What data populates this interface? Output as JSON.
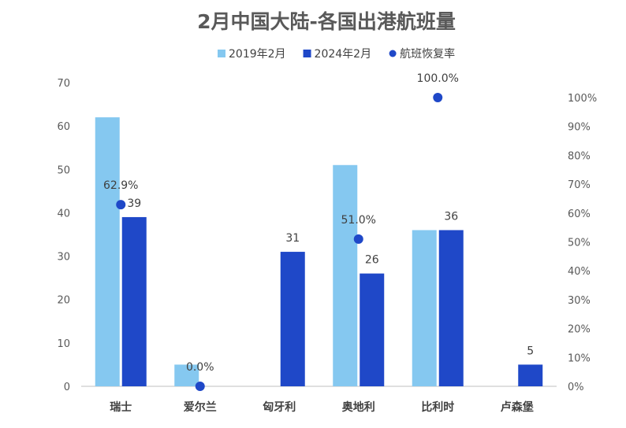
{
  "chart_data": {
    "type": "bar",
    "title": "2月中国大陆-各国出港航班量",
    "categories": [
      "瑞士",
      "爱尔兰",
      "匈牙利",
      "奥地利",
      "比利时",
      "卢森堡"
    ],
    "series": [
      {
        "name": "2019年2月",
        "kind": "bar",
        "axis": "left",
        "color": "#85C8F0",
        "values": [
          62,
          5,
          0,
          51,
          36,
          0
        ],
        "show_labels": false
      },
      {
        "name": "2024年2月",
        "kind": "bar",
        "axis": "left",
        "color": "#1F48C8",
        "values": [
          39,
          0,
          31,
          26,
          36,
          5
        ],
        "labels": [
          "39",
          "",
          "31",
          "26",
          "36",
          "5"
        ]
      },
      {
        "name": "航班恢复率",
        "kind": "scatter",
        "axis": "right",
        "color": "#1F48C8",
        "values": [
          62.9,
          0.0,
          null,
          51.0,
          100.0,
          null
        ],
        "labels": [
          "62.9%",
          "0.0%",
          "",
          "51.0%",
          "100.0%",
          ""
        ]
      }
    ],
    "y_left": {
      "min": 0,
      "max": 70,
      "step": 10,
      "ticks": [
        "0",
        "10",
        "20",
        "30",
        "40",
        "50",
        "60",
        "70"
      ]
    },
    "y_right": {
      "min": 0,
      "max": 100,
      "step": 10,
      "ticks": [
        "0%",
        "10%",
        "20%",
        "30%",
        "40%",
        "50%",
        "60%",
        "70%",
        "80%",
        "90%",
        "100%"
      ]
    },
    "legend_position": "top-center",
    "grid": false
  }
}
